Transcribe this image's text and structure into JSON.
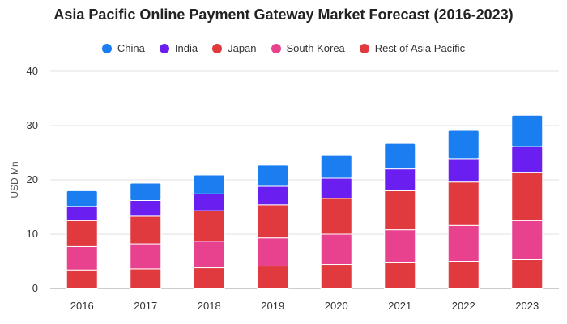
{
  "chart_data": {
    "type": "bar",
    "stacked": true,
    "title": "Asia Pacific Online Payment Gateway Market Forecast (2016-2023)",
    "xlabel": "",
    "ylabel": "USD Mn",
    "ylim": [
      0,
      40
    ],
    "yticks": [
      "0",
      "10",
      "20",
      "30",
      "40"
    ],
    "grid": true,
    "legend_position": "top-center",
    "categories": [
      "2016",
      "2017",
      "2018",
      "2019",
      "2020",
      "2021",
      "2022",
      "2023"
    ],
    "series": [
      {
        "name": "Rest of Asia Pacific",
        "color": "#e0393e",
        "values": [
          3.4,
          3.6,
          3.8,
          4.1,
          4.4,
          4.7,
          5.0,
          5.3
        ]
      },
      {
        "name": "South Korea",
        "color": "#e8418d",
        "values": [
          4.3,
          4.6,
          4.9,
          5.2,
          5.6,
          6.1,
          6.6,
          7.2
        ]
      },
      {
        "name": "Japan",
        "color": "#e0393e",
        "values": [
          4.8,
          5.1,
          5.6,
          6.1,
          6.6,
          7.2,
          8.0,
          8.9
        ]
      },
      {
        "name": "India",
        "color": "#6a1ff0",
        "values": [
          2.6,
          2.9,
          3.1,
          3.4,
          3.7,
          4.0,
          4.3,
          4.7
        ]
      },
      {
        "name": "China",
        "color": "#1a7ef0",
        "values": [
          2.9,
          3.2,
          3.5,
          3.9,
          4.3,
          4.7,
          5.2,
          5.8
        ]
      }
    ],
    "legend_order": [
      "China",
      "India",
      "Japan",
      "South Korea",
      "Rest of Asia Pacific"
    ]
  }
}
